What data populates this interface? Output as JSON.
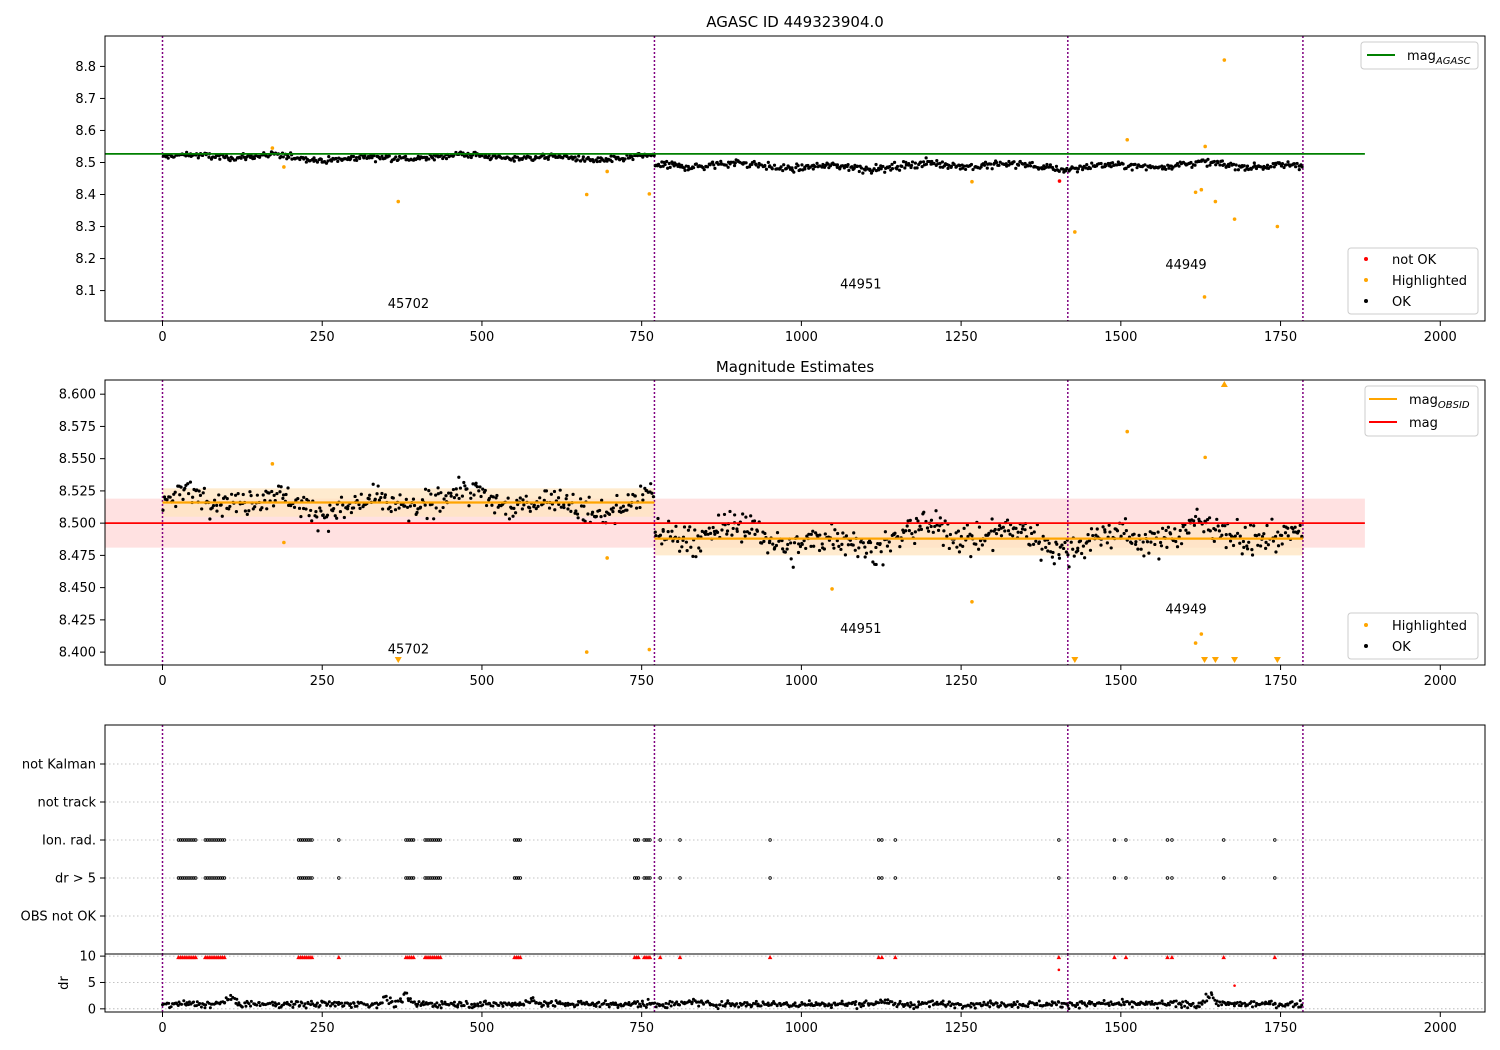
{
  "figure": {
    "panel1_title": "AGASC ID 449323904.0",
    "panel2_title": "Magnitude Estimates"
  },
  "colors": {
    "ok": "#000000",
    "highlighted": "#ffa500",
    "not_ok": "#ff0000",
    "agasc_line": "#008000",
    "obsid_mag": "#ffa500",
    "mean_mag": "#ff0000",
    "obsid_band": "#ffe4bf",
    "mean_band": "#ffdede",
    "obsid_divider": "#800080"
  },
  "chart_data": [
    {
      "type": "scatter",
      "title": "AGASC ID 449323904.0",
      "xlim": [
        -90,
        2070
      ],
      "ylim": [
        8.005,
        8.895
      ],
      "xticks": [
        0,
        250,
        500,
        750,
        1000,
        1250,
        1500,
        1750,
        2000
      ],
      "yticks": [
        8.1,
        8.2,
        8.3,
        8.4,
        8.5,
        8.6,
        8.7,
        8.8
      ],
      "ytick_labels": [
        "8.1",
        "8.2",
        "8.3",
        "8.4",
        "8.5",
        "8.6",
        "8.7",
        "8.8"
      ],
      "grid": false,
      "obsid_boundaries": [
        0,
        770,
        1417,
        1785
      ],
      "obsid_labels": [
        {
          "x": 385,
          "y": 8.045,
          "text": "45702"
        },
        {
          "x": 1093,
          "y": 8.107,
          "text": "44951"
        },
        {
          "x": 1602,
          "y": 8.167,
          "text": "44949"
        }
      ],
      "agasc_mag": {
        "value": 8.527,
        "x_range": [
          -90,
          1882
        ]
      },
      "ok_segments": [
        {
          "x0": 0,
          "x1": 770,
          "mean": 8.516,
          "spread": 0.012,
          "n": 380
        },
        {
          "x0": 770,
          "x1": 1417,
          "mean": 8.489,
          "spread": 0.014,
          "n": 330
        },
        {
          "x0": 1417,
          "x1": 1785,
          "mean": 8.49,
          "spread": 0.013,
          "n": 190
        }
      ],
      "highlighted": {
        "x": [
          172,
          190,
          369,
          664,
          696,
          762,
          1267,
          1428,
          1510,
          1617,
          1626,
          1632,
          1648,
          1662,
          1678,
          1745,
          1631
        ],
        "y": [
          8.545,
          8.486,
          8.378,
          8.4,
          8.472,
          8.402,
          8.44,
          8.283,
          8.571,
          8.407,
          8.415,
          8.55,
          8.378,
          8.82,
          8.323,
          8.3,
          8.08
        ]
      },
      "not_ok": {
        "x": [
          1404
        ],
        "y": [
          8.442
        ]
      },
      "legend_top": [
        {
          "label": "mag",
          "sub": "AGASC",
          "type": "line",
          "color": "#008000"
        }
      ],
      "legend_bottom": [
        {
          "label": "not OK",
          "type": "marker",
          "color": "#ff0000"
        },
        {
          "label": "Highlighted",
          "type": "marker",
          "color": "#ffa500"
        },
        {
          "label": "OK",
          "type": "marker",
          "color": "#000000"
        }
      ]
    },
    {
      "type": "scatter",
      "title": "Magnitude Estimates",
      "xlim": [
        -90,
        2070
      ],
      "ylim": [
        8.39,
        8.611
      ],
      "xticks": [
        0,
        250,
        500,
        750,
        1000,
        1250,
        1500,
        1750,
        2000
      ],
      "yticks": [
        8.4,
        8.425,
        8.45,
        8.475,
        8.5,
        8.525,
        8.55,
        8.575,
        8.6
      ],
      "ytick_labels": [
        "8.400",
        "8.425",
        "8.450",
        "8.475",
        "8.500",
        "8.525",
        "8.550",
        "8.575",
        "8.600"
      ],
      "grid": false,
      "obsid_boundaries": [
        0,
        770,
        1417,
        1785
      ],
      "obsid_labels": [
        {
          "x": 385,
          "y": 8.399,
          "text": "45702"
        },
        {
          "x": 1093,
          "y": 8.415,
          "text": "44951"
        },
        {
          "x": 1602,
          "y": 8.43,
          "text": "44949"
        }
      ],
      "mean_mag": {
        "value": 8.5,
        "band": [
          8.481,
          8.519
        ],
        "x_range": [
          -90,
          1882
        ]
      },
      "obsid_mags": [
        {
          "x0": 0,
          "x1": 770,
          "value": 8.516,
          "band": [
            8.505,
            8.527
          ]
        },
        {
          "x0": 770,
          "x1": 1785,
          "value": 8.488,
          "band": [
            8.475,
            8.501
          ]
        }
      ],
      "ok_segments": [
        {
          "x0": 0,
          "x1": 770,
          "mean": 8.516,
          "spread": 0.012,
          "n": 380
        },
        {
          "x0": 770,
          "x1": 1417,
          "mean": 8.489,
          "spread": 0.014,
          "n": 330
        },
        {
          "x0": 1417,
          "x1": 1785,
          "mean": 8.49,
          "spread": 0.013,
          "n": 190
        }
      ],
      "highlighted": {
        "x": [
          172,
          190,
          664,
          696,
          762,
          1048,
          1267,
          1510,
          1617,
          1626,
          1632
        ],
        "y": [
          8.546,
          8.485,
          8.4,
          8.473,
          8.402,
          8.449,
          8.439,
          8.571,
          8.407,
          8.414,
          8.551
        ]
      },
      "clipped_low_x": [
        369,
        1428,
        1631,
        1648,
        1678,
        1745
      ],
      "clipped_high_x": [
        1662
      ],
      "legend_top": [
        {
          "label": "mag",
          "sub": "OBSID",
          "type": "line",
          "color": "#ffa500"
        },
        {
          "label": "mag",
          "sub": "",
          "type": "line",
          "color": "#ff0000"
        }
      ],
      "legend_bottom": [
        {
          "label": "Highlighted",
          "type": "marker",
          "color": "#ffa500"
        },
        {
          "label": "OK",
          "type": "marker",
          "color": "#000000"
        }
      ]
    },
    {
      "type": "scatter",
      "title": "",
      "xlim": [
        -90,
        2070
      ],
      "flag_rows": [
        "not Kalman",
        "not track",
        "Ion. rad.",
        "dr > 5",
        "OBS not OK"
      ],
      "flag_points": {
        "Ion. rad.": [
          25,
          28,
          31,
          34,
          37,
          40,
          43,
          46,
          49,
          52,
          67,
          70,
          73,
          76,
          79,
          82,
          85,
          88,
          91,
          94,
          97,
          213,
          216,
          219,
          222,
          225,
          228,
          231,
          234,
          276,
          381,
          384,
          387,
          390,
          393,
          411,
          414,
          417,
          420,
          423,
          426,
          429,
          432,
          435,
          551,
          554,
          557,
          560,
          739,
          742,
          745,
          754,
          757,
          760,
          763,
          779,
          810,
          951,
          1121,
          1126,
          1147,
          1403,
          1490,
          1508,
          1573,
          1580,
          1661,
          1741
        ],
        "dr > 5": [
          25,
          28,
          31,
          34,
          37,
          40,
          43,
          46,
          49,
          52,
          67,
          70,
          73,
          76,
          79,
          82,
          85,
          88,
          91,
          94,
          97,
          213,
          216,
          219,
          222,
          225,
          228,
          231,
          234,
          276,
          381,
          384,
          387,
          390,
          393,
          411,
          414,
          417,
          420,
          423,
          426,
          429,
          432,
          435,
          551,
          554,
          557,
          560,
          739,
          742,
          745,
          754,
          757,
          760,
          763,
          779,
          810,
          951,
          1121,
          1126,
          1147,
          1403,
          1490,
          1508,
          1573,
          1580,
          1661,
          1741
        ]
      },
      "obsid_boundaries": [
        0,
        770,
        1417,
        1785
      ]
    },
    {
      "type": "scatter",
      "title": "",
      "ylabel": "dr",
      "xlim": [
        -90,
        2070
      ],
      "ylim": [
        -0.6,
        10.4
      ],
      "xticks": [
        0,
        250,
        500,
        750,
        1000,
        1250,
        1500,
        1750,
        2000
      ],
      "yticks": [
        0,
        5,
        10
      ],
      "ytick_labels": [
        "0",
        "5",
        "10"
      ],
      "grid": true,
      "obsid_boundaries": [
        0,
        770,
        1417,
        1785
      ],
      "dr_baseline": {
        "mean": 0.9,
        "spread": 0.45,
        "n": 900
      },
      "dr_bumps": [
        [
          105,
          2.2
        ],
        [
          350,
          2.0
        ],
        [
          380,
          2.4
        ],
        [
          580,
          1.9
        ],
        [
          830,
          1.5
        ],
        [
          1125,
          1.6
        ],
        [
          1640,
          2.6
        ]
      ],
      "capped_x": [
        25,
        28,
        31,
        34,
        37,
        40,
        43,
        46,
        49,
        52,
        67,
        70,
        73,
        76,
        79,
        82,
        85,
        88,
        91,
        94,
        97,
        213,
        216,
        219,
        222,
        225,
        228,
        231,
        234,
        276,
        381,
        384,
        387,
        390,
        393,
        411,
        414,
        417,
        420,
        423,
        426,
        429,
        432,
        435,
        551,
        554,
        557,
        560,
        739,
        742,
        745,
        754,
        757,
        760,
        763,
        779,
        810,
        951,
        1121,
        1126,
        1147,
        1403,
        1490,
        1508,
        1573,
        1580,
        1661,
        1741
      ],
      "dr_red_points": {
        "x": [
          1403,
          1678
        ],
        "y": [
          7.4,
          4.4
        ]
      }
    }
  ]
}
